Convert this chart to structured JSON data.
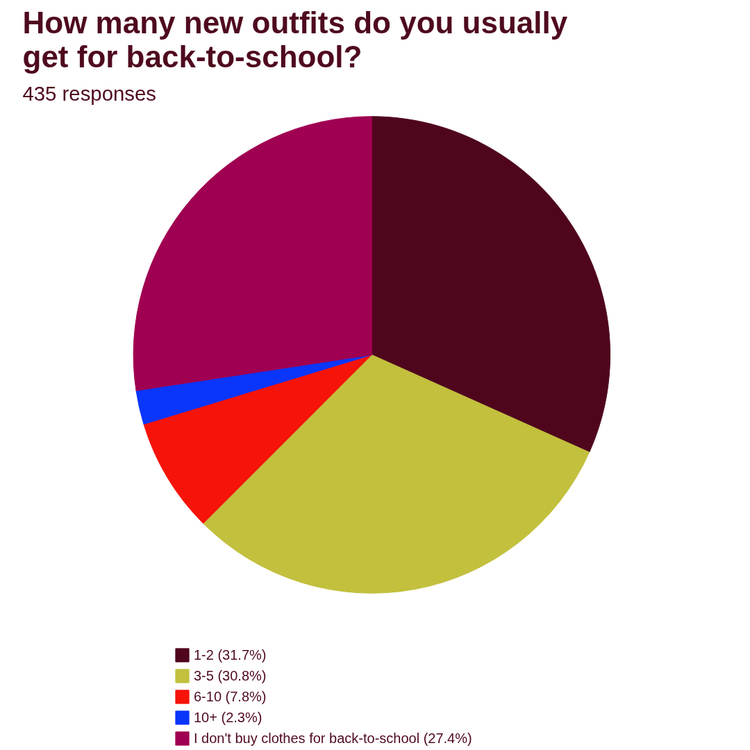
{
  "chart_data": {
    "type": "pie",
    "title": "How many new outfits do you usually get for back-to-school?",
    "subtitle": "435 responses",
    "categories": [
      "1-2 (31.7%)",
      "3-5 (30.8%)",
      "6-10 (7.8%)",
      "10+ (2.3%)",
      "I don't buy clothes for back-to-school (27.4%)"
    ],
    "values": [
      31.7,
      30.8,
      7.8,
      2.3,
      27.4
    ],
    "colors": [
      "#4f061d",
      "#c2c03d",
      "#f5130a",
      "#0a35fa",
      "#a00051"
    ],
    "legend": "bottom"
  }
}
